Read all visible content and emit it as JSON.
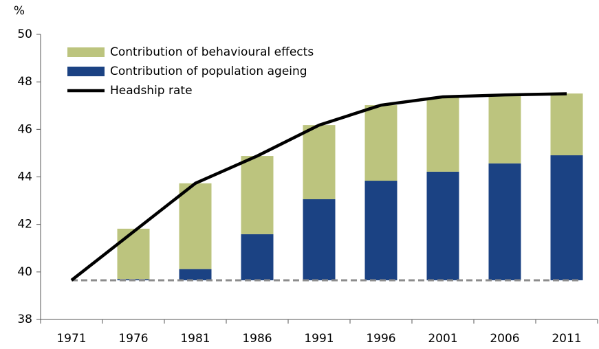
{
  "chart_data": {
    "type": "bar",
    "y_label": "%",
    "categories": [
      "1971",
      "1976",
      "1981",
      "1986",
      "1991",
      "1996",
      "2001",
      "2006",
      "2011"
    ],
    "reference_line": 39.65,
    "series": [
      {
        "name": "Contribution of population ageing",
        "color": "#1b4283",
        "values": [
          null,
          0.05,
          0.47,
          1.94,
          3.41,
          4.19,
          4.57,
          4.92,
          5.26
        ]
      },
      {
        "name": "Contribution of behavioural effects",
        "color": "#bcc47e",
        "values": [
          null,
          2.12,
          3.61,
          3.29,
          3.12,
          3.18,
          3.12,
          2.86,
          2.6
        ]
      },
      {
        "name": "Headship rate",
        "color": "#000000",
        "line": true,
        "values": [
          39.65,
          41.69,
          43.73,
          44.88,
          46.18,
          47.02,
          47.37,
          47.45,
          47.5
        ]
      }
    ],
    "legend_order": [
      1,
      0,
      2
    ],
    "ylim": [
      38,
      50
    ],
    "yticks": [
      38,
      40,
      42,
      44,
      46,
      48,
      50
    ]
  }
}
